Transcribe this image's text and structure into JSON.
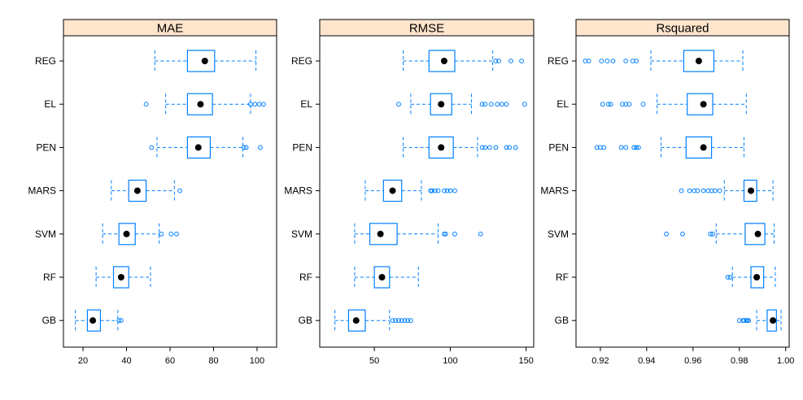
{
  "chart_data": {
    "type": "box",
    "categories": [
      "REG",
      "EL",
      "PEN",
      "MARS",
      "SVM",
      "RF",
      "GB"
    ],
    "colors": {
      "box": "#0080ff",
      "strip": "#ffe5cc",
      "median": "#000000"
    },
    "panels": [
      {
        "title": "MAE",
        "xlim": [
          11,
          109
        ],
        "ticks": [
          20,
          40,
          60,
          80,
          100
        ],
        "tick_labels": [
          "20",
          "40",
          "60",
          "80",
          "100"
        ],
        "stats": [
          {
            "category": "REG",
            "whisker_low": 53,
            "q1": 68,
            "median": 76,
            "q3": 80.5,
            "whisker_high": 99.5,
            "outliers": []
          },
          {
            "category": "EL",
            "whisker_low": 58,
            "q1": 68,
            "median": 74,
            "q3": 79.5,
            "whisker_high": 97,
            "outliers": [
              49,
              97,
              99,
              101,
              103
            ]
          },
          {
            "category": "PEN",
            "whisker_low": 54,
            "q1": 68,
            "median": 73,
            "q3": 78.5,
            "whisker_high": 93.5,
            "outliers": [
              51.5,
              94,
              95,
              101.5
            ]
          },
          {
            "category": "MARS",
            "whisker_low": 33,
            "q1": 41,
            "median": 45,
            "q3": 49,
            "whisker_high": 62,
            "outliers": [
              64.5
            ]
          },
          {
            "category": "SVM",
            "whisker_low": 29,
            "q1": 36.5,
            "median": 40,
            "q3": 44,
            "whisker_high": 55,
            "outliers": [
              56,
              60.5,
              63
            ]
          },
          {
            "category": "RF",
            "whisker_low": 26,
            "q1": 34,
            "median": 37.5,
            "q3": 41,
            "whisker_high": 51,
            "outliers": []
          },
          {
            "category": "GB",
            "whisker_low": 16.5,
            "q1": 22,
            "median": 24.5,
            "q3": 28,
            "whisker_high": 36,
            "outliers": [
              36.5,
              37.5
            ]
          }
        ]
      },
      {
        "title": "RMSE",
        "xlim": [
          14,
          155
        ],
        "ticks": [
          50,
          100,
          150
        ],
        "tick_labels": [
          "50",
          "100",
          "150"
        ],
        "stats": [
          {
            "category": "REG",
            "whisker_low": 69,
            "q1": 86,
            "median": 96,
            "q3": 103,
            "whisker_high": 128,
            "outliers": [
              130,
              132,
              140,
              147
            ]
          },
          {
            "category": "EL",
            "whisker_low": 74,
            "q1": 87,
            "median": 94,
            "q3": 101,
            "whisker_high": 114,
            "outliers": [
              66,
              121,
              123,
              127,
              131,
              134,
              137,
              149
            ]
          },
          {
            "category": "PEN",
            "whisker_low": 69,
            "q1": 86,
            "median": 94,
            "q3": 102,
            "whisker_high": 118,
            "outliers": [
              121,
              123,
              126,
              130,
              137,
              139,
              143
            ]
          },
          {
            "category": "MARS",
            "whisker_low": 44,
            "q1": 56,
            "median": 62,
            "q3": 68,
            "whisker_high": 81,
            "outliers": [
              87,
              88,
              90,
              92,
              96,
              98,
              100,
              103
            ]
          },
          {
            "category": "SVM",
            "whisker_low": 37,
            "q1": 47,
            "median": 54,
            "q3": 65,
            "whisker_high": 92,
            "outliers": [
              96,
              97,
              103,
              120
            ]
          },
          {
            "category": "RF",
            "whisker_low": 37,
            "q1": 50,
            "median": 55,
            "q3": 60,
            "whisker_high": 79,
            "outliers": []
          },
          {
            "category": "GB",
            "whisker_low": 24,
            "q1": 33,
            "median": 38,
            "q3": 44,
            "whisker_high": 60,
            "outliers": [
              62,
              64,
              66,
              68,
              70,
              72,
              74
            ]
          }
        ]
      },
      {
        "title": "Rsquared",
        "xlim": [
          0.9095,
          1.0015
        ],
        "ticks": [
          0.92,
          0.94,
          0.96,
          0.98,
          1.0
        ],
        "tick_labels": [
          "0.92",
          "0.94",
          "0.96",
          "0.98",
          "1.00"
        ],
        "stats": [
          {
            "category": "REG",
            "whisker_low": 0.9418,
            "q1": 0.956,
            "median": 0.9625,
            "q3": 0.969,
            "whisker_high": 0.9815,
            "outliers": [
              0.9135,
              0.915,
              0.9205,
              0.923,
              0.9255,
              0.931,
              0.934,
              0.9355
            ]
          },
          {
            "category": "EL",
            "whisker_low": 0.9445,
            "q1": 0.9575,
            "median": 0.9645,
            "q3": 0.9685,
            "whisker_high": 0.983,
            "outliers": [
              0.921,
              0.9235,
              0.9245,
              0.9295,
              0.931,
              0.9325,
              0.9385
            ]
          },
          {
            "category": "PEN",
            "whisker_low": 0.9462,
            "q1": 0.957,
            "median": 0.9645,
            "q3": 0.968,
            "whisker_high": 0.982,
            "outliers": [
              0.9185,
              0.92,
              0.9215,
              0.929,
              0.931,
              0.9345,
              0.9355,
              0.9365
            ]
          },
          {
            "category": "MARS",
            "whisker_low": 0.9735,
            "q1": 0.982,
            "median": 0.985,
            "q3": 0.9875,
            "whisker_high": 0.9945,
            "outliers": [
              0.955,
              0.9585,
              0.9605,
              0.962,
              0.9645,
              0.9665,
              0.968,
              0.9695,
              0.9715
            ]
          },
          {
            "category": "SVM",
            "whisker_low": 0.97,
            "q1": 0.9825,
            "median": 0.988,
            "q3": 0.991,
            "whisker_high": 0.995,
            "outliers": [
              0.9485,
              0.9555,
              0.9675,
              0.9685
            ]
          },
          {
            "category": "RF",
            "whisker_low": 0.977,
            "q1": 0.985,
            "median": 0.9875,
            "q3": 0.9905,
            "whisker_high": 0.9955,
            "outliers": [
              0.975,
              0.976
            ]
          },
          {
            "category": "GB",
            "whisker_low": 0.9875,
            "q1": 0.992,
            "median": 0.9945,
            "q3": 0.996,
            "whisker_high": 0.998,
            "outliers": [
              0.98,
              0.9815,
              0.982,
              0.983,
              0.9835,
              0.984
            ]
          }
        ]
      }
    ]
  }
}
